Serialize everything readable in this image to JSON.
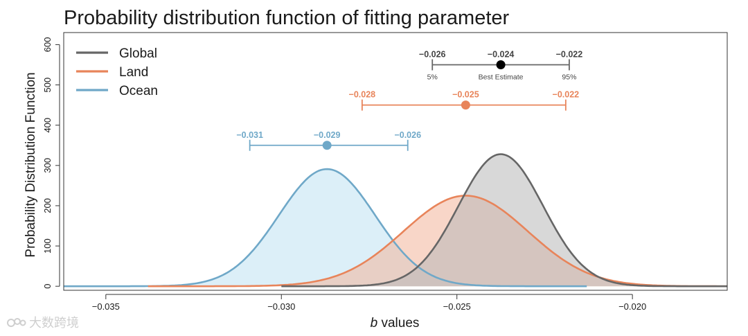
{
  "chart_data": {
    "type": "area",
    "title": "Probability distribution function of fitting parameter",
    "xlabel_italic": "b",
    "xlabel_rest": " values",
    "ylabel": "Probability Distribution Function",
    "xlim": [
      -0.0362,
      -0.0173
    ],
    "ylim": [
      -10,
      630
    ],
    "x_ticks": [
      -0.035,
      -0.03,
      -0.025,
      -0.02
    ],
    "x_tick_labels": [
      "−0.035",
      "−0.030",
      "−0.025",
      "−0.020"
    ],
    "y_ticks": [
      0,
      100,
      200,
      300,
      400,
      500,
      600
    ],
    "y_tick_labels": [
      "0",
      "100",
      "200",
      "300",
      "400",
      "500",
      "600"
    ],
    "legend_position": "top-left",
    "series": [
      {
        "name": "Ocean",
        "line_color": "#6fa8c8",
        "fill_color": "#bfe1f2",
        "x_start": -0.0362,
        "x_end": -0.0213,
        "peak_x": -0.0287,
        "peak_y": 291,
        "sd": 0.00137,
        "interval": {
          "y": 350,
          "low": -0.0309,
          "best": -0.0287,
          "high": -0.0264,
          "low_label": "−0.031",
          "best_label": "−0.029",
          "high_label": "−0.026"
        }
      },
      {
        "name": "Land",
        "line_color": "#e8845a",
        "fill_color": "#f2b59a",
        "x_start": -0.0338,
        "x_end": -0.0173,
        "peak_x": -0.02475,
        "peak_y": 225,
        "sd": 0.00177,
        "interval": {
          "y": 450,
          "low": -0.0277,
          "best": -0.02475,
          "high": -0.0219,
          "low_label": "−0.028",
          "best_label": "−0.025",
          "high_label": "−0.022"
        }
      },
      {
        "name": "Global",
        "line_color": "#666666",
        "fill_color": "#b8b8b8",
        "x_start": -0.03,
        "x_end": -0.0173,
        "peak_x": -0.02375,
        "peak_y": 328,
        "sd": 0.00121,
        "interval": {
          "y": 550,
          "low": -0.0257,
          "best": -0.02375,
          "high": -0.0218,
          "low_label": "−0.026",
          "best_label": "−0.024",
          "high_label": "−0.022",
          "low_caption": "5%",
          "best_caption": "Best Estimate",
          "high_caption": "95%"
        }
      }
    ]
  },
  "legend_items": [
    "Global",
    "Land",
    "Ocean"
  ],
  "legend_colors": [
    "#666666",
    "#e8845a",
    "#6fa8c8"
  ],
  "watermark": "大数跨境"
}
